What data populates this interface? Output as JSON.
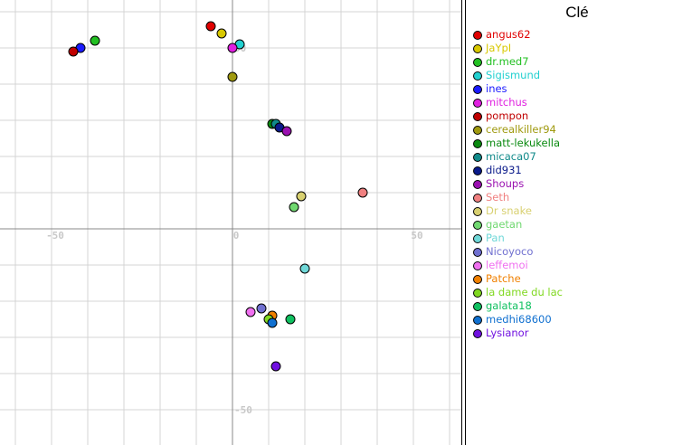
{
  "chart_data": {
    "type": "scatter",
    "title": "",
    "xlabel": "",
    "ylabel": "",
    "xlim": [
      -65,
      65
    ],
    "ylim": [
      -60,
      63
    ],
    "grid": true,
    "x_tick_labels": [
      "-50",
      "0",
      "50"
    ],
    "y_tick_labels": [
      "50",
      "-50"
    ],
    "legend_title": "Clé",
    "legend_position": "right",
    "series": [
      {
        "name": "angus62",
        "color": "#e00000",
        "x": -6,
        "y": 56
      },
      {
        "name": "JaYpI",
        "color": "#d8c800",
        "x": -3,
        "y": 54
      },
      {
        "name": "dr.med7",
        "color": "#22c022",
        "x": -38,
        "y": 52
      },
      {
        "name": "Sigismund",
        "color": "#22d0d0",
        "x": 2,
        "y": 51
      },
      {
        "name": "ines",
        "color": "#1a1aff",
        "x": -42,
        "y": 50
      },
      {
        "name": "mitchus",
        "color": "#e020e0",
        "x": 0,
        "y": 50
      },
      {
        "name": "pompon",
        "color": "#c00000",
        "x": -44,
        "y": 49
      },
      {
        "name": "cerealkiller94",
        "color": "#a09a10",
        "x": 0,
        "y": 42
      },
      {
        "name": "matt-lekukella",
        "color": "#0a8a10",
        "x": 11,
        "y": 29
      },
      {
        "name": "micaca07",
        "color": "#108a8a",
        "x": 12,
        "y": 29
      },
      {
        "name": "did931",
        "color": "#0a1a8a",
        "x": 13,
        "y": 28
      },
      {
        "name": "Shoups",
        "color": "#9a10b0",
        "x": 15,
        "y": 27
      },
      {
        "name": "Seth",
        "color": "#f08080",
        "x": 36,
        "y": 10
      },
      {
        "name": "Dr snake",
        "color": "#d8d070",
        "x": 19,
        "y": 9
      },
      {
        "name": "gaetan",
        "color": "#70d870",
        "x": 17,
        "y": 6
      },
      {
        "name": "Pan",
        "color": "#70d8d8",
        "x": 20,
        "y": -11
      },
      {
        "name": "Nicoyoco",
        "color": "#7070d0",
        "x": 8,
        "y": -22
      },
      {
        "name": "leffemoi",
        "color": "#f070f0",
        "x": 5,
        "y": -23
      },
      {
        "name": "Patche",
        "color": "#f08000",
        "x": 11,
        "y": -24
      },
      {
        "name": "la dame du lac",
        "color": "#80d820",
        "x": 10,
        "y": -25
      },
      {
        "name": "galata18",
        "color": "#10c060",
        "x": 16,
        "y": -25
      },
      {
        "name": "medhi68600",
        "color": "#1070d0",
        "x": 11,
        "y": -26
      },
      {
        "name": "Lysianor",
        "color": "#7010e0",
        "x": 12,
        "y": -38
      }
    ]
  }
}
